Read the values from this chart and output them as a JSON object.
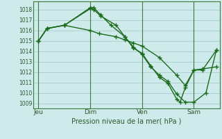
{
  "background_color": "#ceeaea",
  "grid_color": "#a8cccc",
  "line_color": "#1a6b1a",
  "marker_color": "#1a6b1a",
  "xtick_labels": [
    "Jeu",
    "Dim",
    "Ven",
    "Sam"
  ],
  "xtick_positions": [
    0,
    3,
    6,
    9
  ],
  "xlabel_text": "Pression niveau de la mer( hPa )",
  "ylim": [
    1008.5,
    1018.8
  ],
  "yticks": [
    1009,
    1010,
    1011,
    1012,
    1013,
    1014,
    1015,
    1016,
    1017,
    1018
  ],
  "xlim": [
    -0.3,
    10.5
  ],
  "series": [
    {
      "x": [
        0,
        0.5,
        1.5,
        3.0,
        3.2,
        3.6,
        4.2,
        5.0,
        5.5,
        6.0,
        6.5,
        7.0,
        7.5,
        8.0,
        8.5,
        9.0,
        9.7,
        10.3
      ],
      "y": [
        1015.0,
        1016.2,
        1016.5,
        1018.2,
        1018.2,
        1017.5,
        1016.5,
        1015.4,
        1014.4,
        1013.7,
        1012.5,
        1011.7,
        1011.1,
        1009.9,
        1009.1,
        1009.1,
        1010.0,
        1014.1
      ]
    },
    {
      "x": [
        0,
        0.5,
        1.5,
        3.0,
        3.2,
        3.6,
        4.5,
        5.0,
        5.5,
        6.0,
        6.5,
        7.0,
        7.5,
        8.0,
        8.2,
        8.5,
        9.0,
        9.5,
        10.3
      ],
      "y": [
        1015.0,
        1016.2,
        1016.5,
        1018.1,
        1018.0,
        1017.4,
        1016.5,
        1015.4,
        1014.3,
        1013.8,
        1012.6,
        1011.5,
        1010.9,
        1009.4,
        1009.1,
        1010.5,
        1012.2,
        1012.3,
        1012.5
      ]
    },
    {
      "x": [
        0,
        0.5,
        1.5,
        3.0,
        3.5,
        4.5,
        5.0,
        5.5,
        6.0,
        7.0,
        8.0,
        8.5,
        9.0,
        9.5,
        10.3
      ],
      "y": [
        1015.0,
        1016.2,
        1016.5,
        1016.0,
        1015.7,
        1015.4,
        1015.1,
        1014.8,
        1014.5,
        1013.4,
        1011.7,
        1010.7,
        1012.2,
        1012.2,
        1014.1
      ]
    }
  ],
  "vline_positions": [
    0,
    3,
    6,
    9
  ]
}
